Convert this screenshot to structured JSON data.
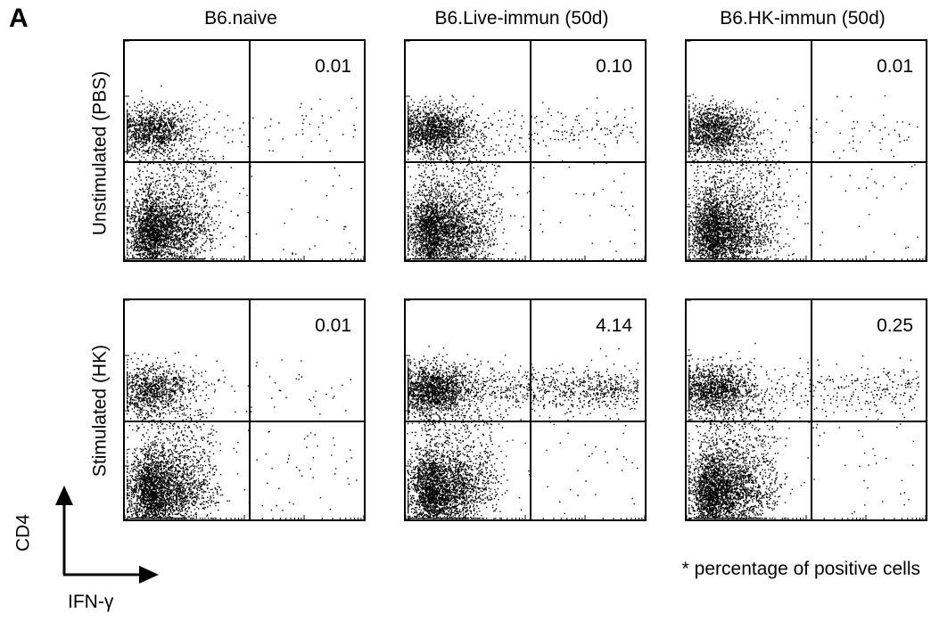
{
  "figure": {
    "panel_letter": "A",
    "footnote": "* percentage of positive cells",
    "x_axis_label": "IFN-γ",
    "y_axis_label": "CD4"
  },
  "chart_data": {
    "type": "scatter",
    "columns": [
      "B6.naive",
      "B6.Live-immun (50d)",
      "B6.HK-immun (50d)"
    ],
    "rows": [
      "Unstimulated (PBS)",
      "Stimulated (HK)"
    ],
    "quadrant_values": [
      [
        "0.01",
        "0.10",
        "0.01"
      ],
      [
        "0.01",
        "4.14",
        "0.25"
      ]
    ]
  },
  "colors": {
    "dots": "#000000",
    "background": "#ffffff"
  }
}
